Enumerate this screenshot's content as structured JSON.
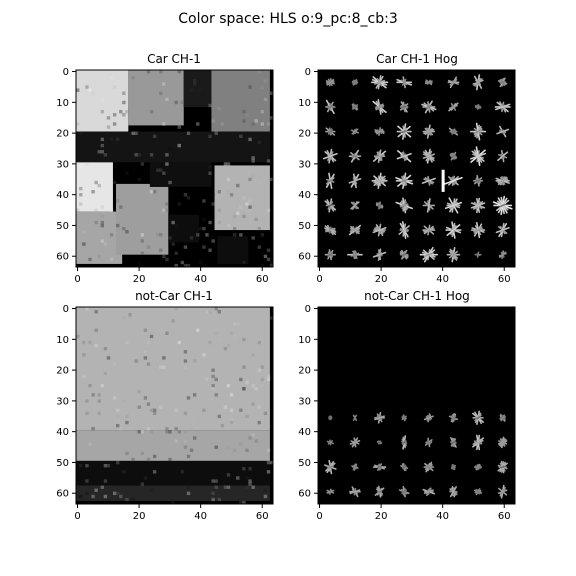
{
  "figure": {
    "suptitle": "Color space: HLS o:9_pc:8_cb:3"
  },
  "chart_data": [
    {
      "type": "heatmap",
      "title": "Car CH-1",
      "colormap": "gray",
      "image_size": [
        64,
        64
      ],
      "xlim": [
        0,
        63
      ],
      "ylim": [
        63,
        0
      ],
      "xticks": [
        0,
        20,
        40,
        60
      ],
      "yticks": [
        0,
        10,
        20,
        30,
        40,
        50,
        60
      ],
      "xlabel": "",
      "ylabel": "",
      "regions": [
        {
          "label": "upper-left light area",
          "x": [
            0,
            17
          ],
          "y": [
            0,
            20
          ],
          "intensity": 0.85
        },
        {
          "label": "upper-middle gray",
          "x": [
            17,
            35
          ],
          "y": [
            0,
            18
          ],
          "intensity": 0.6
        },
        {
          "label": "upper-right dark",
          "x": [
            35,
            44
          ],
          "y": [
            0,
            12
          ],
          "intensity": 0.1
        },
        {
          "label": "upper-right gray",
          "x": [
            44,
            63
          ],
          "y": [
            0,
            20
          ],
          "intensity": 0.5
        },
        {
          "label": "middle dark band",
          "x": [
            0,
            63
          ],
          "y": [
            20,
            30
          ],
          "intensity": 0.08
        },
        {
          "label": "lower-left light",
          "x": [
            0,
            12
          ],
          "y": [
            30,
            46
          ],
          "intensity": 0.9
        },
        {
          "label": "lower-left gray",
          "x": [
            0,
            15
          ],
          "y": [
            46,
            63
          ],
          "intensity": 0.65
        },
        {
          "label": "car body gray",
          "x": [
            13,
            30
          ],
          "y": [
            37,
            60
          ],
          "intensity": 0.62
        },
        {
          "label": "car dark underside",
          "x": [
            24,
            44
          ],
          "y": [
            30,
            38
          ],
          "intensity": 0.06
        },
        {
          "label": "car grille dark",
          "x": [
            30,
            40
          ],
          "y": [
            47,
            56
          ],
          "intensity": 0.05
        },
        {
          "label": "lower-right light gray",
          "x": [
            45,
            63
          ],
          "y": [
            31,
            52
          ],
          "intensity": 0.7
        },
        {
          "label": "lower-right dark",
          "x": [
            46,
            56
          ],
          "y": [
            54,
            63
          ],
          "intensity": 0.05
        }
      ]
    },
    {
      "type": "heatmap",
      "title": "Car CH-1 Hog",
      "colormap": "gray",
      "image_size": [
        64,
        64
      ],
      "xlim": [
        0,
        63
      ],
      "ylim": [
        63,
        0
      ],
      "xticks": [
        0,
        20,
        40,
        60
      ],
      "yticks": [
        0,
        10,
        20,
        30,
        40,
        50,
        60
      ],
      "xlabel": "",
      "ylabel": "",
      "hog": {
        "orientations": 9,
        "pixels_per_cell": 8,
        "cells_per_block": 3,
        "cell_grid": [
          8,
          8
        ],
        "strong_cell_intensity": 0.9,
        "max_cell": [
          4,
          5
        ]
      }
    },
    {
      "type": "heatmap",
      "title": "not-Car CH-1",
      "colormap": "gray",
      "image_size": [
        64,
        64
      ],
      "xlim": [
        0,
        63
      ],
      "ylim": [
        63,
        0
      ],
      "xticks": [
        0,
        20,
        40,
        60
      ],
      "yticks": [
        0,
        10,
        20,
        30,
        40,
        50,
        60
      ],
      "xlabel": "",
      "ylabel": "",
      "regions": [
        {
          "label": "upper gray surface",
          "x": [
            0,
            63
          ],
          "y": [
            0,
            40
          ],
          "intensity": 0.7
        },
        {
          "label": "mid gray surface",
          "x": [
            0,
            63
          ],
          "y": [
            40,
            50
          ],
          "intensity": 0.65
        },
        {
          "label": "dark edge band",
          "x": [
            0,
            63
          ],
          "y": [
            50,
            58
          ],
          "intensity": 0.05
        },
        {
          "label": "bottom dark strip",
          "x": [
            0,
            63
          ],
          "y": [
            58,
            63
          ],
          "intensity": 0.15
        }
      ]
    },
    {
      "type": "heatmap",
      "title": "not-Car CH-1 Hog",
      "colormap": "gray",
      "image_size": [
        64,
        64
      ],
      "xlim": [
        0,
        63
      ],
      "ylim": [
        63,
        0
      ],
      "xticks": [
        0,
        20,
        40,
        60
      ],
      "yticks": [
        0,
        10,
        20,
        30,
        40,
        50,
        60
      ],
      "xlabel": "",
      "ylabel": "",
      "hog": {
        "orientations": 9,
        "pixels_per_cell": 8,
        "cells_per_block": 3,
        "cell_grid": [
          8,
          8
        ],
        "active_rows": [
          4,
          5,
          6,
          7
        ],
        "strong_cell_intensity": 0.75
      }
    }
  ]
}
